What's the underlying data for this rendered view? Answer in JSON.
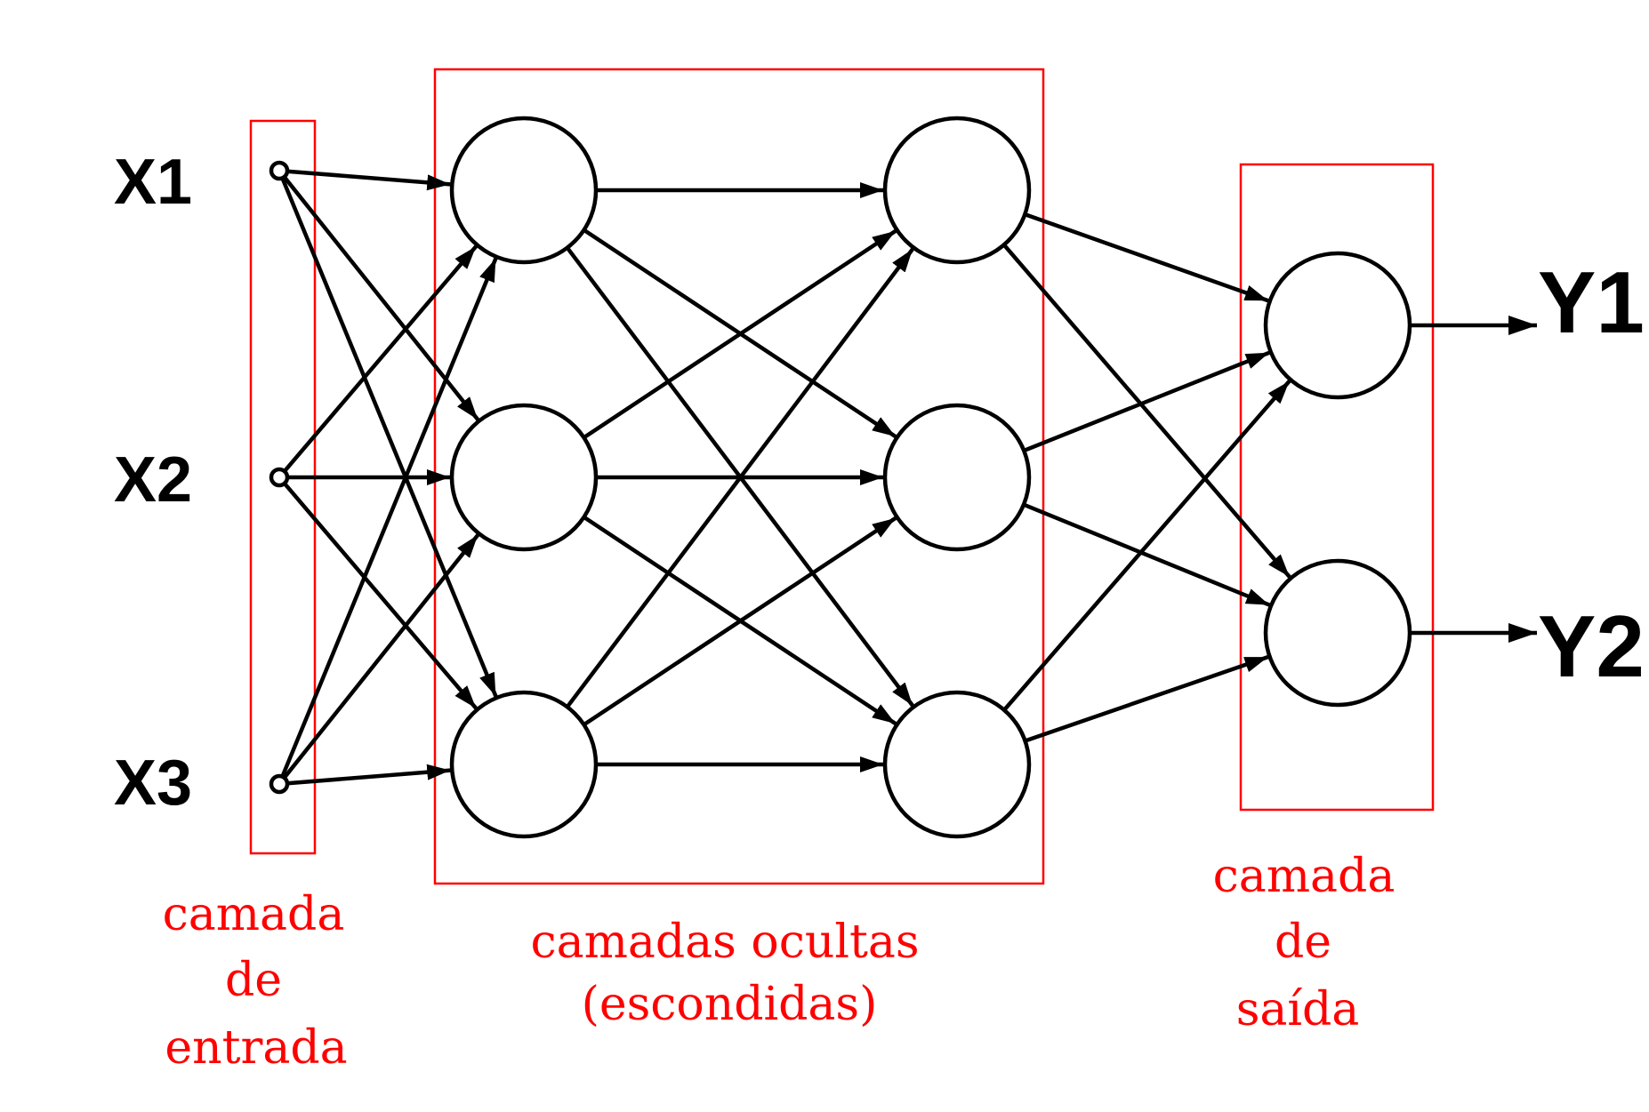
{
  "colors": {
    "stroke": "#000000",
    "box": "#ff0000",
    "label": "#ff0000",
    "background": "#ffffff"
  },
  "inputs": [
    "X1",
    "X2",
    "X3"
  ],
  "outputs": [
    "Y1",
    "Y2"
  ],
  "layers": {
    "input": {
      "label_lines": [
        "camada",
        "de",
        "entrada"
      ]
    },
    "hidden": {
      "label_lines": [
        "camadas ocultas",
        "(escondidas)"
      ],
      "count": 2,
      "neurons_per_layer": 3
    },
    "output": {
      "label_lines": [
        "camada",
        "de",
        "saída"
      ]
    }
  },
  "connections": "fully-connected"
}
